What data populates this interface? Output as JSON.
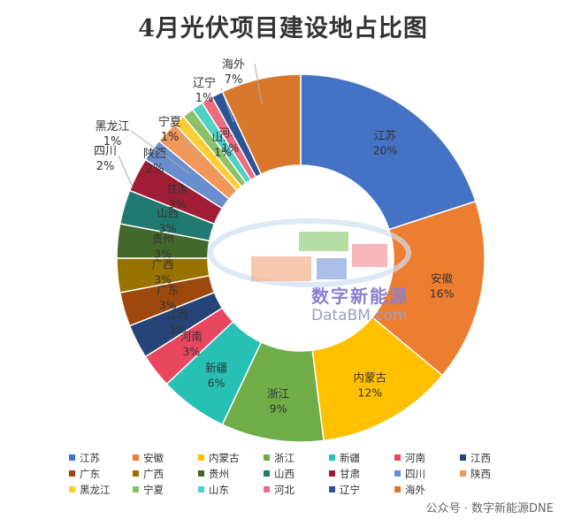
{
  "chart_data": {
    "type": "pie",
    "title": "4月光伏项目建设地占比图",
    "categories": [
      "江苏",
      "安徽",
      "内蒙古",
      "浙江",
      "新疆",
      "河南",
      "江西",
      "广东",
      "广西",
      "贵州",
      "山西",
      "甘肃",
      "四川",
      "陕西",
      "黑龙江",
      "宁夏",
      "山东",
      "河北",
      "辽宁",
      "海外"
    ],
    "values": [
      20,
      16,
      12,
      9,
      6,
      3,
      3,
      3,
      3,
      3,
      3,
      3,
      2,
      2,
      1,
      1,
      1,
      1,
      1,
      7
    ],
    "value_labels": [
      "20%",
      "16%",
      "12%",
      "9%",
      "6%",
      "3%",
      "3%",
      "3%",
      "3%",
      "3%",
      "3%",
      "3%",
      "2%",
      "2%",
      "1%",
      "1%",
      "1%",
      "1%",
      "1%",
      "7%"
    ],
    "colors": [
      "#4472C4",
      "#ED7D31",
      "#FFC000",
      "#70AD47",
      "#26C0B4",
      "#E8475F",
      "#264478",
      "#9E480E",
      "#997300",
      "#43682B",
      "#207A70",
      "#9F1D35",
      "#698ED0",
      "#F1975A",
      "#FFCD33",
      "#8CC168",
      "#4FD1C5",
      "#ED6C7F",
      "#2E5496",
      "#D9782C"
    ],
    "legend_position": "bottom"
  },
  "watermark": {
    "name": "数字新能源",
    "site": "DataBM.com"
  },
  "credit": "公众号 · 数字新能源DNE"
}
